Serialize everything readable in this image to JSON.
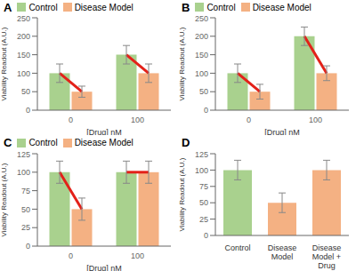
{
  "chart_data": [
    {
      "type": "bar",
      "title": "A",
      "categories": [
        "0",
        "100"
      ],
      "x_label": "[Drug] nM",
      "y_label": "Viability Readout (A.U.)",
      "ylim": [
        0,
        250
      ],
      "yticks": [
        0,
        50,
        100,
        150,
        200,
        250
      ],
      "legend": "top",
      "series": [
        {
          "name": "Control",
          "color": "#a9d18e",
          "values": [
            100,
            150
          ],
          "errors": [
            25,
            25
          ]
        },
        {
          "name": "Disease Model",
          "color": "#f4b183",
          "values": [
            50,
            100
          ],
          "errors": [
            15,
            25
          ]
        }
      ]
    },
    {
      "type": "bar",
      "title": "B",
      "categories": [
        "0",
        "100"
      ],
      "x_label": "[Drug] nM",
      "y_label": "Viability Readout (A.U.)",
      "ylim": [
        0,
        250
      ],
      "yticks": [
        0,
        50,
        100,
        150,
        200,
        250
      ],
      "legend": "top",
      "series": [
        {
          "name": "Control",
          "color": "#a9d18e",
          "values": [
            100,
            200
          ],
          "errors": [
            25,
            25
          ]
        },
        {
          "name": "Disease Model",
          "color": "#f4b183",
          "values": [
            50,
            100
          ],
          "errors": [
            20,
            20
          ]
        }
      ]
    },
    {
      "type": "bar",
      "title": "C",
      "categories": [
        "0",
        "100"
      ],
      "x_label": "[Drug] nM",
      "y_label": "Viability Readout (A.U.)",
      "ylim": [
        0,
        125
      ],
      "yticks": [
        0,
        25,
        50,
        75,
        100,
        125
      ],
      "legend": "top",
      "series": [
        {
          "name": "Control",
          "color": "#a9d18e",
          "values": [
            100,
            100
          ],
          "errors": [
            15,
            15
          ]
        },
        {
          "name": "Disease Model",
          "color": "#f4b183",
          "values": [
            50,
            100
          ],
          "errors": [
            15,
            15
          ]
        }
      ]
    },
    {
      "type": "bar",
      "title": "D",
      "categories": [
        "Control",
        "Disease Model",
        "Disease Model + Drug"
      ],
      "y_label": "Viability Readout (A.U.)",
      "ylim": [
        0,
        125
      ],
      "yticks": [
        0,
        25,
        50,
        75,
        100,
        125
      ],
      "values": [
        100,
        50,
        100
      ],
      "errors": [
        15,
        15,
        15
      ],
      "colors": [
        "#a9d18e",
        "#f4b183",
        "#f4b183"
      ]
    }
  ]
}
